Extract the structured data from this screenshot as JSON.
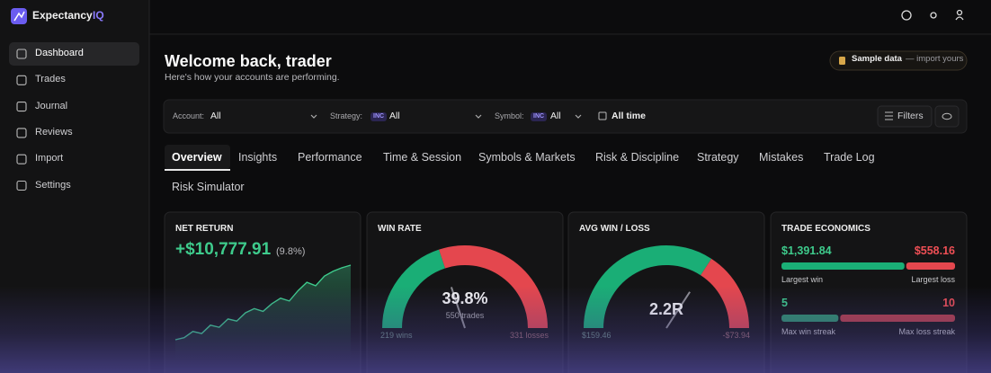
{
  "brand": {
    "name": "Expectancy",
    "accent": "IQ"
  },
  "nav": [
    "Dashboard",
    "Trades",
    "Journal",
    "Reviews",
    "Import",
    "Settings"
  ],
  "header": {
    "title": "Welcome back, trader",
    "subtitle": "Here's how your accounts are performing.",
    "badge": "Sample data",
    "badge_note": "— import yours"
  },
  "filters": {
    "account_label": "Account:",
    "account": "All",
    "strategy_label": "Strategy:",
    "strategy_tag": "INC",
    "strategy": "All",
    "symbol_label": "Symbol:",
    "symbol_tag": "INC",
    "symbol": "All",
    "period": "All time",
    "button": "Filters"
  },
  "tabs": [
    "Overview",
    "Insights",
    "Performance",
    "Time & Session",
    "Symbols & Markets",
    "Risk & Discipline",
    "Strategy",
    "Mistakes",
    "Trade Log",
    "Risk Simulator"
  ],
  "cards": [
    {
      "title": "NET RETURN",
      "value": "+$10,777.91",
      "pct": "(9.8%)",
      "spark": [
        0,
        300,
        1200,
        900,
        2100,
        1800,
        3000,
        2700,
        3900,
        4500,
        4100,
        5200,
        6000,
        5600,
        7100,
        8300,
        7800,
        9200,
        9900,
        10400,
        10778
      ]
    },
    {
      "title": "WIN RATE",
      "value": "39.8%",
      "sub": "550 trades",
      "left": "219 wins",
      "right": "331 losses",
      "gauge": [
        219,
        331
      ]
    },
    {
      "title": "AVG WIN / LOSS",
      "value": "2.2R",
      "left": "$159.46",
      "right": "-$73.94",
      "gauge": [
        159.46,
        73.94
      ]
    },
    {
      "title": "TRADE ECONOMICS",
      "rows": [
        {
          "left": "$1,391.84",
          "right": "$558.16",
          "left_label": "Largest win",
          "right_label": "Largest loss",
          "split": [
            1391.84,
            558.16
          ]
        },
        {
          "left": "5",
          "right": "10",
          "left_label": "Max win streak",
          "right_label": "Max loss streak",
          "split": [
            5,
            10
          ]
        }
      ]
    }
  ]
}
